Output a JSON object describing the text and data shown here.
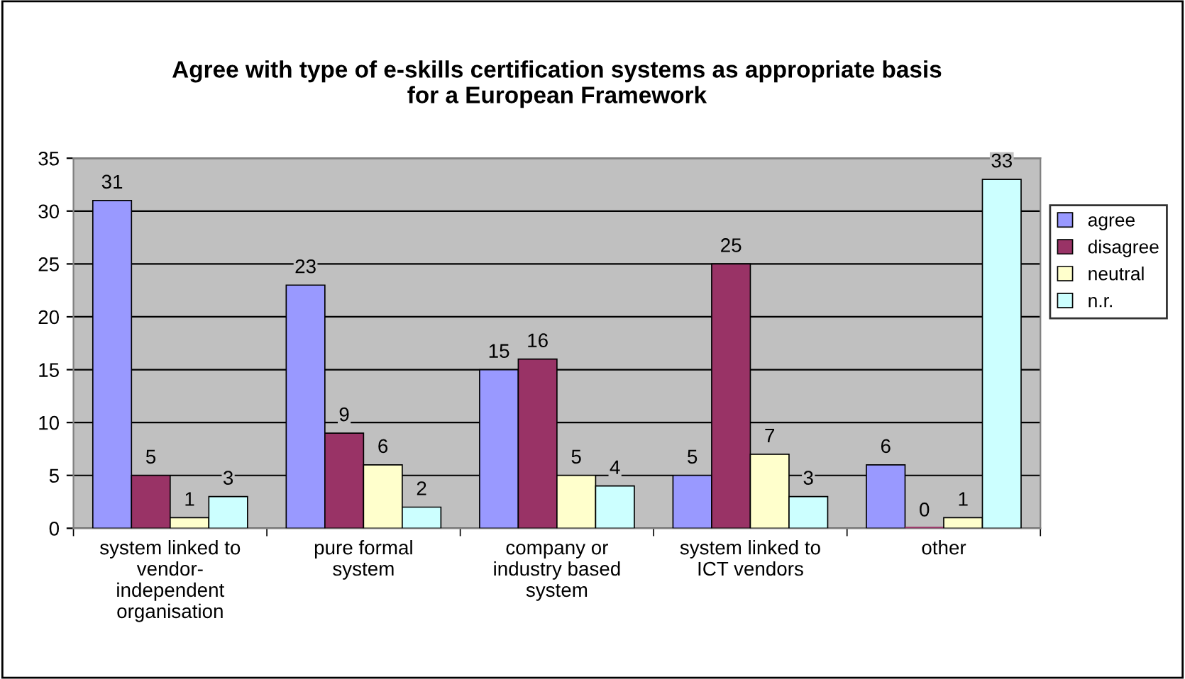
{
  "chart_data": {
    "type": "bar",
    "title": "Agree with type of e-skills certification systems as appropriate basis\nfor a European Framework",
    "categories": [
      "system linked to\nvendor-\nindependent\norganisation",
      "pure formal\nsystem",
      "company or\nindustry based\nsystem",
      "system linked to\nICT vendors",
      "other"
    ],
    "series": [
      {
        "name": "agree",
        "color": "#9999ff",
        "values": [
          31,
          23,
          15,
          5,
          6
        ]
      },
      {
        "name": "disagree",
        "color": "#993366",
        "values": [
          5,
          9,
          16,
          25,
          0
        ]
      },
      {
        "name": "neutral",
        "color": "#ffffcc",
        "values": [
          1,
          6,
          5,
          7,
          1
        ]
      },
      {
        "name": "n.r.",
        "color": "#ccffff",
        "values": [
          3,
          2,
          4,
          3,
          33
        ]
      }
    ],
    "ylim": [
      0,
      35
    ],
    "yticks": [
      0,
      5,
      10,
      15,
      20,
      25,
      30,
      35
    ],
    "grid": "y",
    "legend": "right",
    "data_labels": true
  }
}
